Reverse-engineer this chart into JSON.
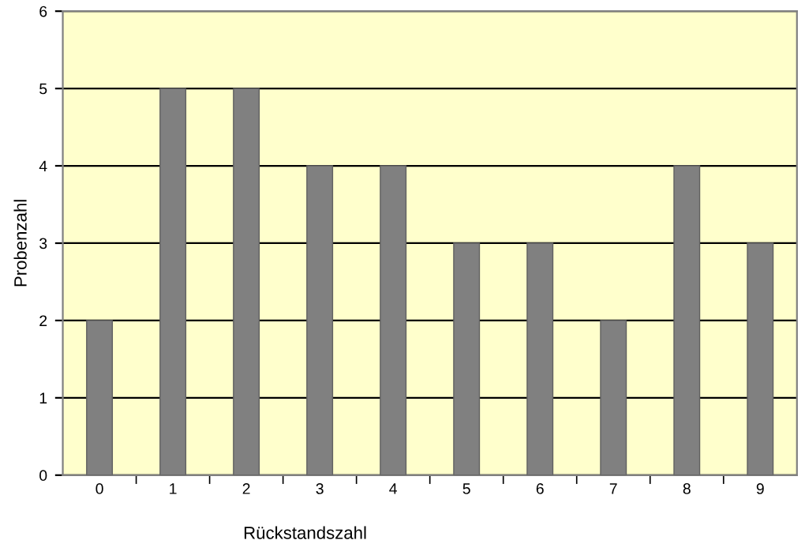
{
  "chart_data": {
    "type": "bar",
    "xlabel": "Rückstandszahl",
    "ylabel": "Probenzahl",
    "categories": [
      "0",
      "1",
      "2",
      "3",
      "4",
      "5",
      "6",
      "7",
      "8",
      "9"
    ],
    "values": [
      2,
      5,
      5,
      4,
      4,
      3,
      3,
      2,
      4,
      3
    ],
    "color": "#808080",
    "ylim": [
      0,
      6
    ],
    "yticks": [
      0,
      1,
      2,
      3,
      4,
      5,
      6
    ],
    "grid": "y"
  }
}
